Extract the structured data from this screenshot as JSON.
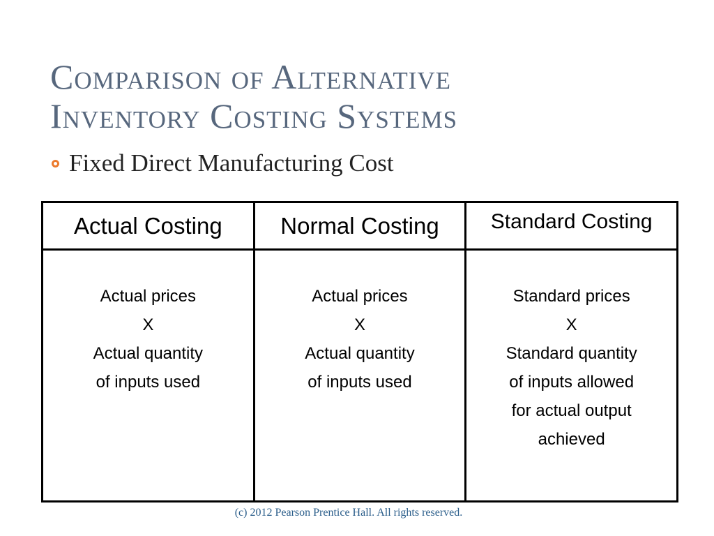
{
  "title": {
    "line1": "Comparison of Alternative",
    "line2": "Inventory Costing Systems"
  },
  "bullet": "Fixed Direct Manufacturing Cost",
  "table": {
    "headers": [
      "Actual Costing",
      "Normal Costing",
      "Standard Costing"
    ],
    "columns": [
      [
        "Actual prices",
        "X",
        "Actual quantity",
        "of inputs used"
      ],
      [
        "Actual prices",
        "X",
        "Actual quantity",
        "of inputs used"
      ],
      [
        "Standard prices",
        "X",
        "Standard quantity",
        "of inputs allowed",
        "for actual output",
        "achieved"
      ]
    ]
  },
  "footer": "(c) 2012 Pearson Prentice Hall. All rights reserved.",
  "colors": {
    "title": "#57677d",
    "bullet": "#ec7a2c",
    "footer": "#2a5d8a"
  }
}
